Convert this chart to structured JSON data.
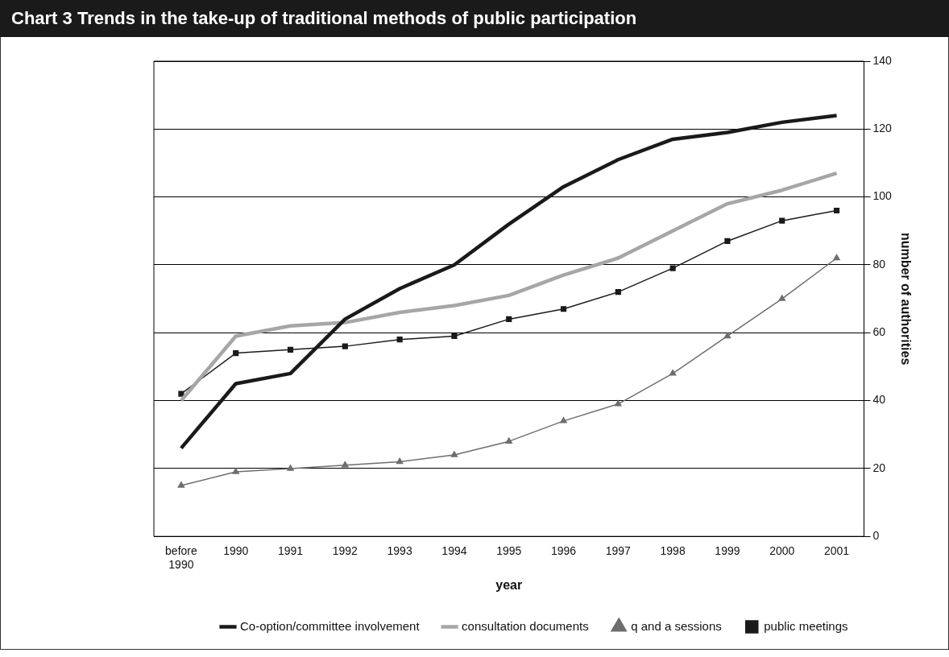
{
  "chart_data": {
    "type": "line",
    "title": "Chart 3 Trends in the take-up of traditional methods of public participation",
    "xlabel": "year",
    "ylabel": "number of authorities",
    "categories": [
      "before 1990",
      "1990",
      "1991",
      "1992",
      "1993",
      "1994",
      "1995",
      "1996",
      "1997",
      "1998",
      "1999",
      "2000",
      "2001"
    ],
    "series": [
      {
        "name": "Co-option/committee involvement",
        "color": "#1a1a1a",
        "marker": "none",
        "values": [
          26,
          45,
          48,
          64,
          73,
          80,
          92,
          103,
          111,
          117,
          119,
          122,
          124
        ]
      },
      {
        "name": "consultation documents",
        "color": "#a6a6a6",
        "marker": "none",
        "values": [
          40,
          59,
          62,
          63,
          66,
          68,
          71,
          77,
          82,
          90,
          98,
          102,
          107
        ]
      },
      {
        "name": "q and a sessions",
        "color": "#6e6e6e",
        "marker": "triangle",
        "values": [
          15,
          19,
          20,
          21,
          22,
          24,
          28,
          34,
          39,
          48,
          59,
          70,
          82
        ]
      },
      {
        "name": "public meetings",
        "color": "#1a1a1a",
        "marker": "square",
        "values": [
          42,
          54,
          55,
          56,
          58,
          59,
          64,
          67,
          72,
          79,
          87,
          93,
          96
        ]
      }
    ],
    "ylim": [
      0,
      140
    ],
    "yticks": [
      0,
      20,
      40,
      60,
      80,
      100,
      120,
      140
    ],
    "grid": "y",
    "legend": "bottom",
    "line_style": "solid"
  }
}
